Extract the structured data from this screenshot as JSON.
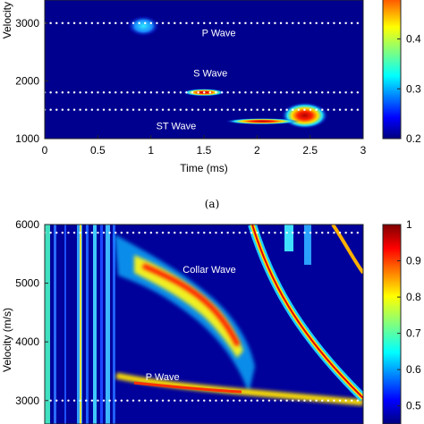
{
  "chart_data": [
    {
      "type": "heatmap",
      "title": "",
      "xlabel": "Time (ms)",
      "ylabel": "Velocity",
      "xlim": [
        0,
        3
      ],
      "ylim": [
        1000,
        3400
      ],
      "x_ticks": [
        "0",
        "0.5",
        "1",
        "1.5",
        "2",
        "2.5",
        "3"
      ],
      "y_ticks": [
        "1000",
        "2000",
        "3000"
      ],
      "colorbar_ticks": [
        "0.2",
        "0.3",
        "0.4"
      ],
      "colorbar_range": [
        0.2,
        0.55
      ],
      "dotted_lines": [
        3000,
        1800,
        1500
      ],
      "wave_labels": [
        {
          "text": "P Wave",
          "x": 1.48,
          "y": 2770
        },
        {
          "text": "S Wave",
          "x": 1.4,
          "y": 2080
        },
        {
          "text": "ST Wave",
          "x": 1.05,
          "y": 1160
        }
      ],
      "blobs": [
        {
          "x": 0.93,
          "y": 2950,
          "rx": 0.15,
          "ry": 180,
          "intensity": 0.45
        },
        {
          "x": 1.5,
          "y": 1800,
          "rx": 0.2,
          "ry": 65,
          "intensity": 0.95
        },
        {
          "x": 2.45,
          "y": 1400,
          "rx": 0.22,
          "ry": 230,
          "intensity": 0.95
        },
        {
          "x": 2.05,
          "y": 1300,
          "rx": 0.35,
          "ry": 55,
          "intensity": 0.9
        }
      ],
      "caption": "(a)"
    },
    {
      "type": "heatmap",
      "title": "",
      "xlabel": "",
      "ylabel": "Velocity (m/s)",
      "xlim": [
        0,
        3
      ],
      "ylim": [
        2600,
        6000
      ],
      "y_ticks": [
        "3000",
        "4000",
        "5000",
        "6000"
      ],
      "colorbar_ticks": [
        "0.5",
        "0.6",
        "0.7",
        "0.8",
        "0.9",
        "1"
      ],
      "colorbar_range": [
        0.45,
        1.0
      ],
      "dotted_lines": [
        5860,
        3000
      ],
      "wave_labels": [
        {
          "text": "Collar Wave",
          "x": 1.3,
          "y": 5180
        },
        {
          "text": "P Wave",
          "x": 0.95,
          "y": 3350
        }
      ]
    }
  ]
}
